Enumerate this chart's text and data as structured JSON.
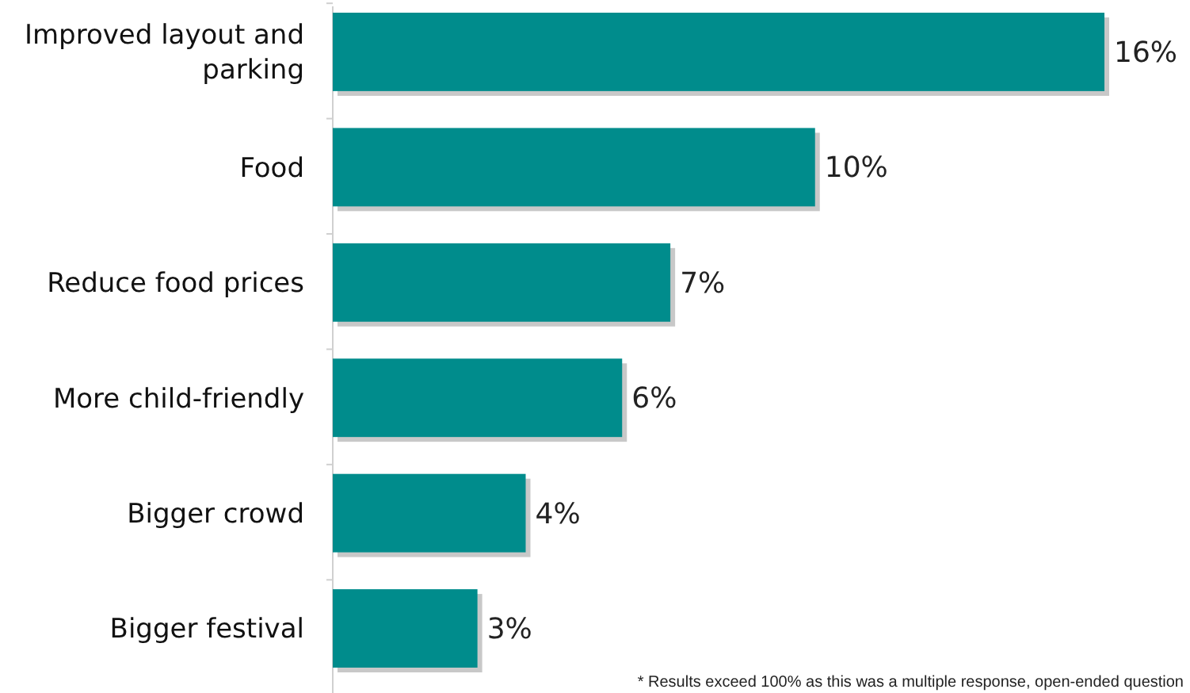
{
  "chart_data": {
    "type": "bar",
    "orientation": "horizontal",
    "categories": [
      "Improved layout and parking",
      "Food",
      "Reduce food prices",
      "More child-friendly",
      "Bigger crowd",
      "Bigger festival"
    ],
    "values": [
      16,
      10,
      7,
      6,
      4,
      3
    ],
    "color": "#008c8c",
    "value_labels": [
      "16%",
      "10%",
      "7%",
      "6%",
      "4%",
      "3%"
    ],
    "annotations": [
      "* Results exceed 100% as this was a multiple response, open-ended question"
    ]
  }
}
